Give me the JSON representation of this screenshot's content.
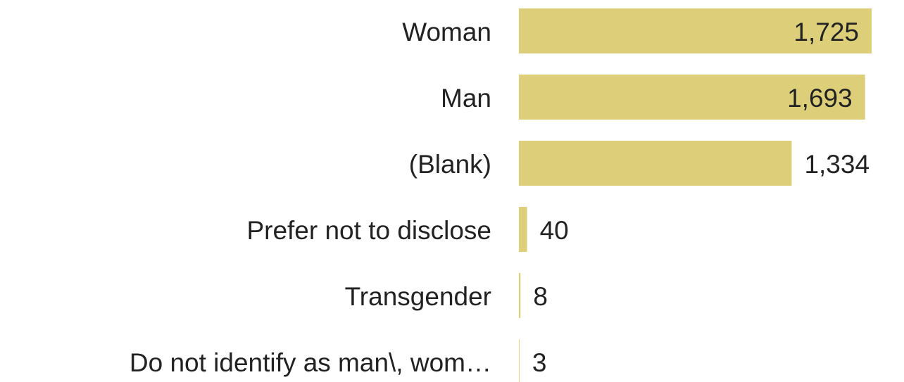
{
  "chart_data": {
    "type": "bar",
    "orientation": "horizontal",
    "categories": [
      "Woman",
      "Man",
      "(Blank)",
      "Prefer not to disclose",
      "Transgender",
      "Do not identify as man\\, wom…"
    ],
    "values": [
      1725,
      1693,
      1334,
      40,
      8,
      3
    ],
    "value_labels": [
      "1,725",
      "1,693",
      "1,334",
      "40",
      "8",
      "3"
    ],
    "color": "#ddcf7a"
  }
}
